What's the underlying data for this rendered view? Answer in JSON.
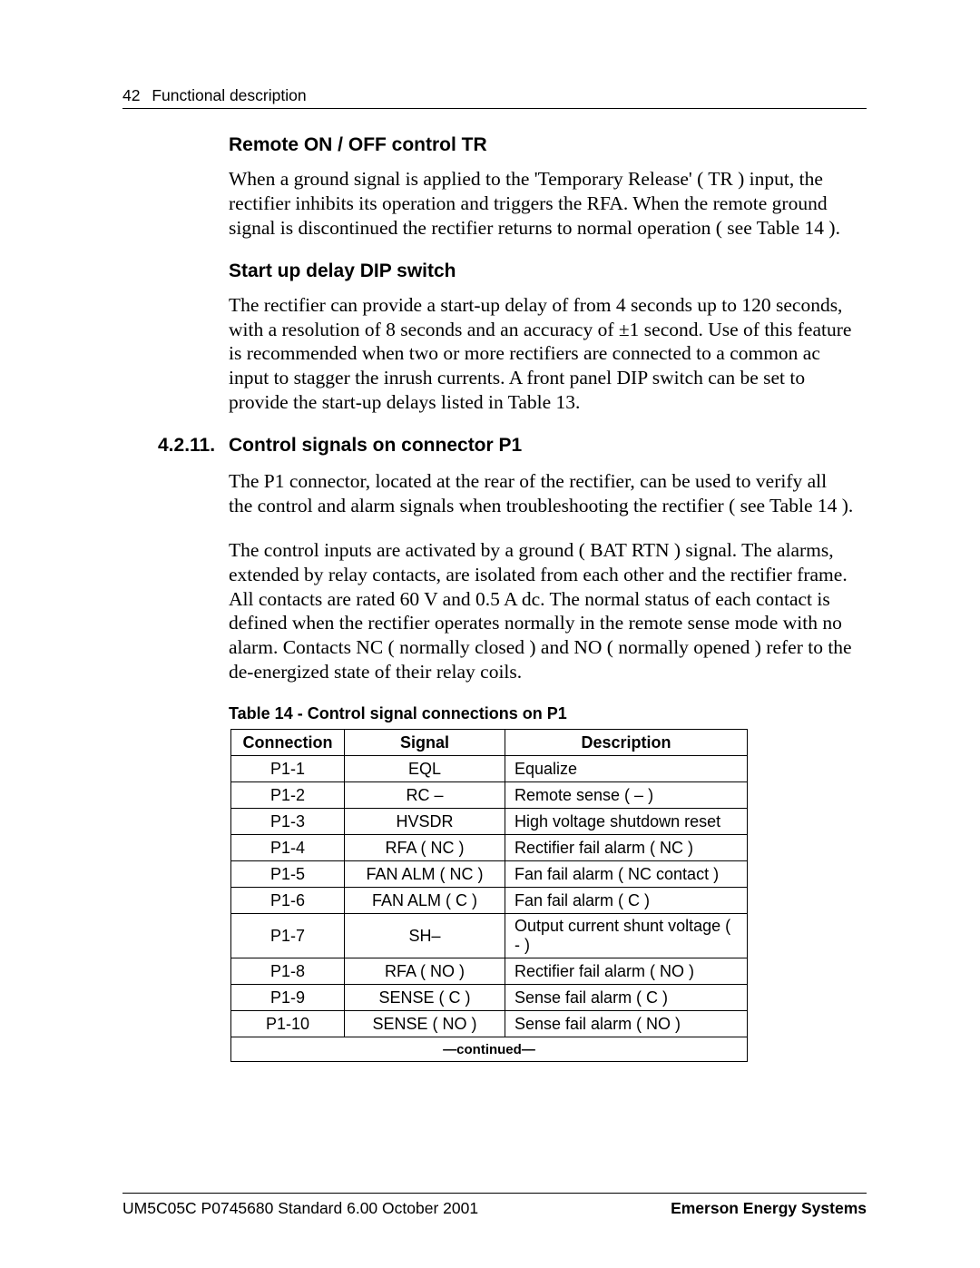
{
  "pageNumber": "42",
  "runningHeader": "Functional description",
  "sections": {
    "s1": {
      "heading": "Remote ON / OFF control TR",
      "para": "When a ground signal is applied to the 'Temporary Release' ( TR ) input, the rectifier inhibits its operation and triggers the RFA. When the remote ground signal is discontinued the rectifier returns to normal operation ( see Table 14 )."
    },
    "s2": {
      "heading": "Start up delay DIP switch",
      "para": "The rectifier can provide a start-up delay of from 4 seconds up to 120 seconds, with a resolution of 8 seconds and an accuracy of ±1 second. Use of this feature is recommended when two or more rectifiers are connected to a common ac input to stagger the inrush currents. A front panel DIP switch can be set to provide the start-up delays listed in Table 13."
    },
    "s3": {
      "num": "4.2.11.",
      "heading": "Control signals on connector P1",
      "para1": "The P1 connector, located at the rear of the rectifier, can be used to verify all the control and alarm signals when troubleshooting the rectifier ( see Table 14 ).",
      "para2": "The control inputs are activated by a ground ( BAT RTN ) signal. The alarms, extended by relay contacts, are isolated from each other and the rectifier frame. All contacts are rated 60 V and 0.5 A dc. The normal status of each contact is defined when the rectifier operates normally in the remote sense mode with no alarm. Contacts NC ( normally closed ) and NO ( normally opened ) refer to the de-energized state of their relay coils."
    }
  },
  "table": {
    "caption": "Table 14 - Control signal connections on P1",
    "columns": [
      "Connection",
      "Signal",
      "Description"
    ],
    "rows": [
      [
        "P1-1",
        "EQL",
        "Equalize"
      ],
      [
        "P1-2",
        "RC –",
        "Remote sense ( – )"
      ],
      [
        "P1-3",
        "HVSDR",
        "High voltage shutdown reset"
      ],
      [
        "P1-4",
        "RFA ( NC )",
        "Rectifier fail alarm ( NC )"
      ],
      [
        "P1-5",
        "FAN ALM ( NC )",
        "Fan fail alarm ( NC contact )"
      ],
      [
        "P1-6",
        "FAN ALM ( C )",
        "Fan fail alarm ( C )"
      ],
      [
        "P1-7",
        "SH–",
        "Output current shunt voltage ( - )"
      ],
      [
        "P1-8",
        "RFA ( NO )",
        "Rectifier fail alarm ( NO )"
      ],
      [
        "P1-9",
        "SENSE ( C )",
        "Sense fail alarm ( C )"
      ],
      [
        "P1-10",
        "SENSE ( NO )",
        "Sense fail alarm ( NO )"
      ]
    ],
    "continued": "—continued—"
  },
  "footer": {
    "left": "UM5C05C   P0745680   Standard 6.00   October 2001",
    "right": "Emerson Energy Systems"
  }
}
